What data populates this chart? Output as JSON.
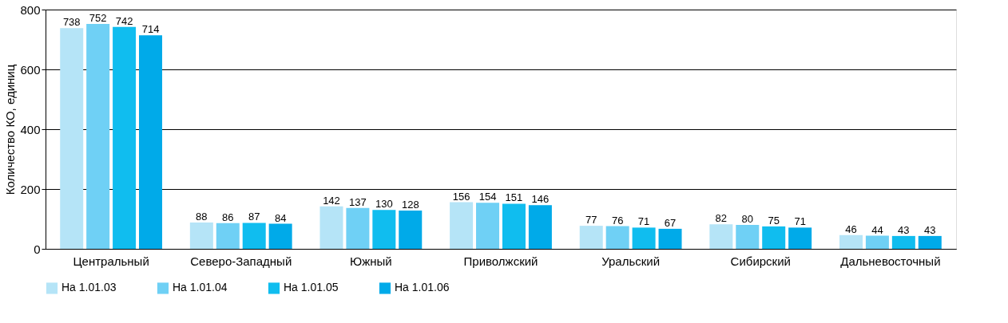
{
  "chart_data": {
    "type": "bar",
    "ylabel": "Количество КО, единиц",
    "categories": [
      "Центральный",
      "Северо-Западный",
      "Южный",
      "Приволжский",
      "Уральский",
      "Сибирский",
      "Дальневосточный"
    ],
    "series": [
      {
        "name": "На 1.01.03",
        "color": "#b5e4f7",
        "values": [
          738,
          88,
          142,
          156,
          77,
          82,
          46
        ]
      },
      {
        "name": "На 1.01.04",
        "color": "#6fd0f5",
        "values": [
          752,
          86,
          137,
          154,
          76,
          80,
          44
        ]
      },
      {
        "name": "На 1.01.05",
        "color": "#10bdef",
        "values": [
          742,
          87,
          130,
          151,
          71,
          75,
          43
        ]
      },
      {
        "name": "На 1.01.06",
        "color": "#00aae9",
        "values": [
          714,
          84,
          128,
          146,
          67,
          71,
          43
        ]
      }
    ],
    "ylim": [
      0,
      800
    ],
    "yticks": [
      0,
      200,
      400,
      600,
      800
    ],
    "grid": "y",
    "legend": "bottom",
    "data_labels": true
  }
}
